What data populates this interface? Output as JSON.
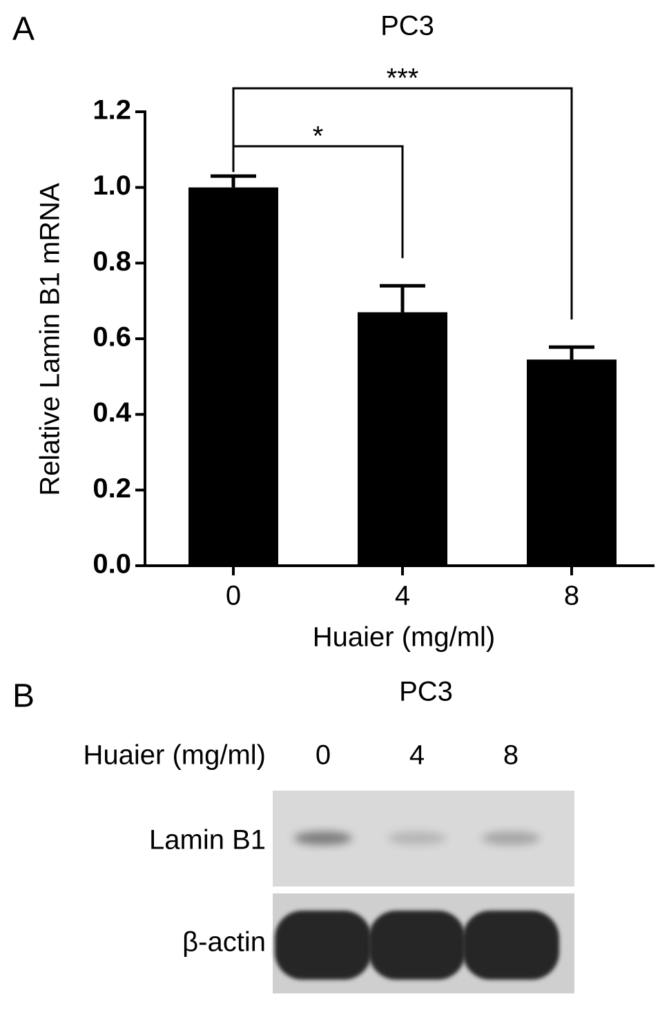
{
  "panel_labels": [
    "A",
    "B"
  ],
  "chart_data": {
    "type": "bar",
    "title": "PC3",
    "categories": [
      "0",
      "4",
      "8"
    ],
    "values": [
      1.0,
      0.67,
      0.545
    ],
    "errors": [
      0.03,
      0.07,
      0.033
    ],
    "color": "#000000",
    "xlabel": "Huaier (mg/ml)",
    "ylabel": "Relative Lamin B1 mRNA",
    "ylim": [
      0,
      1.2
    ],
    "yticks": [
      {
        "value": 0,
        "label": "0.0"
      },
      0.2,
      0.4,
      0.6,
      0.8,
      {
        "value": 1,
        "label": "1.0"
      },
      1.2
    ],
    "annotations": [
      "*",
      "***"
    ]
  },
  "blot": {
    "title": "PC3",
    "condition_label": "Huaier (mg/ml)",
    "lanes": [
      "0",
      "4",
      "8"
    ],
    "rows": [
      "Lamin B1",
      "β-actin"
    ]
  }
}
